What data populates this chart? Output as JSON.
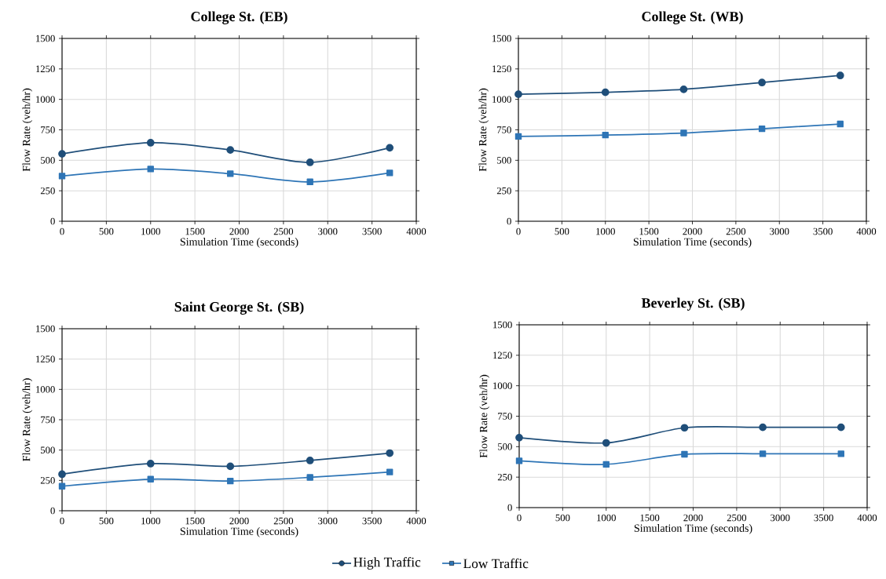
{
  "chart_data": [
    {
      "type": "line",
      "title": "College St. (EB)",
      "xlabel": "Simulation Time (seconds)",
      "ylabel": "Flow Rate (veh/hr)",
      "x": [
        0,
        1000,
        1900,
        2800,
        3700
      ],
      "xlim": [
        0,
        4000
      ],
      "xticks": [
        0,
        500,
        1000,
        1500,
        2000,
        2500,
        3000,
        3500,
        4000
      ],
      "ylim": [
        0,
        1500
      ],
      "yticks": [
        0,
        250,
        500,
        750,
        1000,
        1250,
        1500
      ],
      "grid": true,
      "legend": "bottom",
      "series": [
        {
          "name": "High Traffic",
          "color": "#1f4e79",
          "marker": "circle",
          "values": [
            553,
            644,
            585,
            483,
            603
          ]
        },
        {
          "name": "Low Traffic",
          "color": "#2e75b6",
          "marker": "square",
          "values": [
            371,
            429,
            390,
            323,
            397
          ]
        }
      ]
    },
    {
      "type": "line",
      "title": "College St. (WB)",
      "xlabel": "Simulation Time (seconds)",
      "ylabel": "Flow Rate (veh/hr)",
      "x": [
        0,
        1000,
        1900,
        2800,
        3700
      ],
      "xlim": [
        0,
        4000
      ],
      "xticks": [
        0,
        500,
        1000,
        1500,
        2000,
        2500,
        3000,
        3500,
        4000
      ],
      "ylim": [
        0,
        1500
      ],
      "yticks": [
        0,
        250,
        500,
        750,
        1000,
        1250,
        1500
      ],
      "grid": true,
      "series": [
        {
          "color": "#1f4e79",
          "marker": "circle",
          "values": [
            1042,
            1058,
            1082,
            1138,
            1196
          ]
        },
        {
          "color": "#2e75b6",
          "marker": "square",
          "values": [
            696,
            707,
            724,
            759,
            798
          ]
        }
      ]
    },
    {
      "type": "line",
      "title": "Saint George St. (SB)",
      "xlabel": "Simulation Time (seconds)",
      "ylabel": "Flow Rate (veh/hr)",
      "x": [
        0,
        1000,
        1900,
        2800,
        3700
      ],
      "xlim": [
        0,
        4000
      ],
      "xticks": [
        0,
        500,
        1000,
        1500,
        2000,
        2500,
        3000,
        3500,
        4000
      ],
      "ylim": [
        0,
        1500
      ],
      "yticks": [
        0,
        250,
        500,
        750,
        1000,
        1250,
        1500
      ],
      "grid": true,
      "series": [
        {
          "color": "#1f4e79",
          "marker": "circle",
          "values": [
            301,
            388,
            366,
            414,
            475
          ]
        },
        {
          "color": "#2e75b6",
          "marker": "square",
          "values": [
            202,
            260,
            245,
            275,
            319
          ]
        }
      ]
    },
    {
      "type": "line",
      "title": "Beverley St. (SB)",
      "xlabel": "Simulation Time (seconds)",
      "ylabel": "Flow Rate (veh/hr)",
      "x": [
        0,
        1000,
        1900,
        2800,
        3700
      ],
      "xlim": [
        0,
        4000
      ],
      "xticks": [
        0,
        500,
        1000,
        1500,
        2000,
        2500,
        3000,
        3500,
        4000
      ],
      "ylim": [
        0,
        1500
      ],
      "yticks": [
        0,
        250,
        500,
        750,
        1000,
        1250,
        1500
      ],
      "grid": true,
      "series": [
        {
          "color": "#1f4e79",
          "marker": "circle",
          "values": [
            574,
            531,
            655,
            659,
            659
          ]
        },
        {
          "color": "#2e75b6",
          "marker": "square",
          "values": [
            384,
            355,
            438,
            442,
            442
          ]
        }
      ]
    }
  ]
}
